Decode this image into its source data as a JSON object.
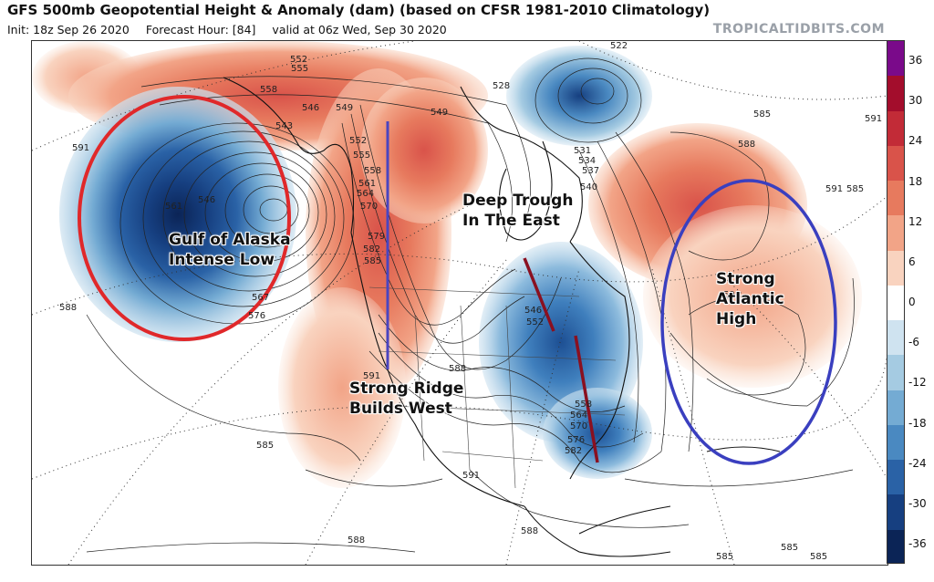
{
  "header": {
    "title": "GFS 500mb Geopotential Height & Anomaly (dam) (based on CFSR 1981-2010 Climatology)",
    "init": "Init: 18z Sep 26 2020",
    "forecast_hour": "Forecast Hour: [84]",
    "valid": "valid at 06z Wed, Sep 30 2020",
    "brand": "TROPICALTIDBITS.COM"
  },
  "annotations": {
    "gulf_low": [
      "Gulf of Alaska",
      "Intense Low"
    ],
    "ridge_west": [
      "Strong Ridge",
      "Builds West"
    ],
    "trough_east": [
      "Deep Trough",
      "In The East"
    ],
    "atlantic_high": [
      "Strong",
      "Atlantic",
      "High"
    ]
  },
  "contour_labels": [
    "552",
    "555",
    "558",
    "546",
    "549",
    "543",
    "591",
    "546",
    "561",
    "567",
    "576",
    "588",
    "552",
    "555",
    "558",
    "561",
    "564",
    "570",
    "579",
    "582",
    "585",
    "591",
    "588",
    "549",
    "528",
    "522",
    "531",
    "534",
    "537",
    "540",
    "546",
    "552",
    "558",
    "564",
    "570",
    "576",
    "582",
    "585",
    "588",
    "591",
    "591",
    "585",
    "588",
    "591",
    "585",
    "585",
    "585",
    "588",
    "591",
    "585"
  ],
  "colorbar": {
    "ticks": [
      "36",
      "30",
      "24",
      "18",
      "12",
      "6",
      "0",
      "-6",
      "-12",
      "-18",
      "-24",
      "-30",
      "-36"
    ],
    "colors": [
      "#7a0a8a",
      "#a30d2c",
      "#c22b37",
      "#d9534a",
      "#e77a5e",
      "#f2a487",
      "#f9d3bf",
      "#ffffff",
      "#cfe3f0",
      "#a5cbe2",
      "#74abd3",
      "#4a89c1",
      "#2a62a6",
      "#163f80",
      "#0b2456"
    ]
  },
  "colors": {
    "gulf_circle": "#e0282a",
    "atlantic_circle": "#3a3fbf",
    "ridge_axis": "#4b45c0",
    "trough_axis": "#8a1020"
  }
}
